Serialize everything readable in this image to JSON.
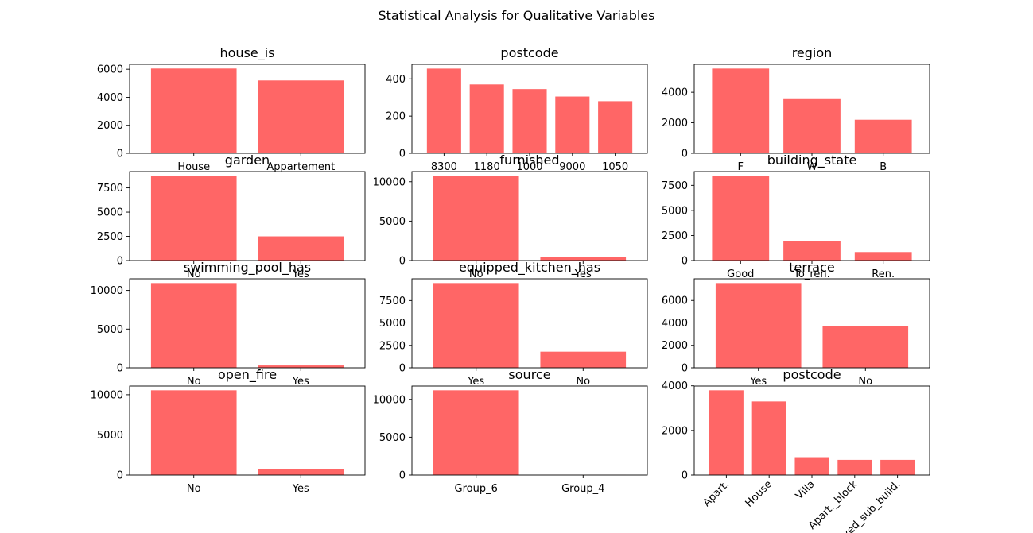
{
  "title": "Statistical Analysis for Qualitative Variables",
  "colors": {
    "bar": "#ff6666",
    "axis": "#000000",
    "background": "#ffffff"
  },
  "chart_data": [
    {
      "type": "bar",
      "title": "house_is",
      "categories": [
        "House",
        "Appartement"
      ],
      "values": [
        6050,
        5200
      ],
      "ylim": [
        0,
        6350
      ],
      "yticks": [
        0,
        2000,
        4000,
        6000
      ],
      "xlabel_rotation": 0
    },
    {
      "type": "bar",
      "title": "postcode",
      "categories": [
        "8300",
        "1180",
        "1000",
        "9000",
        "1050"
      ],
      "values": [
        455,
        370,
        345,
        305,
        280
      ],
      "ylim": [
        0,
        478
      ],
      "yticks": [
        0,
        200,
        400
      ],
      "xlabel_rotation": 0
    },
    {
      "type": "bar",
      "title": "region",
      "categories": [
        "F",
        "W",
        "B"
      ],
      "values": [
        5550,
        3550,
        2200
      ],
      "ylim": [
        0,
        5828
      ],
      "yticks": [
        0,
        2000,
        4000
      ],
      "xlabel_rotation": 0
    },
    {
      "type": "bar",
      "title": "garden",
      "categories": [
        "No",
        "Yes"
      ],
      "values": [
        8750,
        2500
      ],
      "ylim": [
        0,
        9188
      ],
      "yticks": [
        0,
        2500,
        5000,
        7500
      ],
      "xlabel_rotation": 0
    },
    {
      "type": "bar",
      "title": "furnished",
      "categories": [
        "No",
        "Yes"
      ],
      "values": [
        10750,
        500
      ],
      "ylim": [
        0,
        11288
      ],
      "yticks": [
        0,
        5000,
        10000
      ],
      "xlabel_rotation": 0
    },
    {
      "type": "bar",
      "title": "building_state",
      "categories": [
        "Good",
        "To_ren.",
        "Ren."
      ],
      "values": [
        8450,
        1950,
        850
      ],
      "ylim": [
        0,
        8873
      ],
      "yticks": [
        0,
        2500,
        5000,
        7500
      ],
      "xlabel_rotation": 0
    },
    {
      "type": "bar",
      "title": "swimming_pool_has",
      "categories": [
        "No",
        "Yes"
      ],
      "values": [
        10950,
        300
      ],
      "ylim": [
        0,
        11498
      ],
      "yticks": [
        0,
        5000,
        10000
      ],
      "xlabel_rotation": 0
    },
    {
      "type": "bar",
      "title": "equipped_kitchen_has",
      "categories": [
        "Yes",
        "No"
      ],
      "values": [
        9450,
        1800
      ],
      "ylim": [
        0,
        9923
      ],
      "yticks": [
        0,
        2500,
        5000,
        7500
      ],
      "xlabel_rotation": 0
    },
    {
      "type": "bar",
      "title": "terrace",
      "categories": [
        "Yes",
        "No"
      ],
      "values": [
        7550,
        3700
      ],
      "ylim": [
        0,
        7928
      ],
      "yticks": [
        0,
        2000,
        4000,
        6000
      ],
      "xlabel_rotation": 0
    },
    {
      "type": "bar",
      "title": "open_fire",
      "categories": [
        "No",
        "Yes"
      ],
      "values": [
        10550,
        700
      ],
      "ylim": [
        0,
        11078
      ],
      "yticks": [
        0,
        5000,
        10000
      ],
      "xlabel_rotation": 0
    },
    {
      "type": "bar",
      "title": "source",
      "categories": [
        "Group_6",
        "Group_4"
      ],
      "values": [
        11200,
        20
      ],
      "ylim": [
        0,
        11760
      ],
      "yticks": [
        0,
        5000,
        10000
      ],
      "xlabel_rotation": 0
    },
    {
      "type": "bar",
      "title": "postcode",
      "categories": [
        "Apart.",
        "House",
        "Villa",
        "Apart._block",
        "Mixed_sub_build."
      ],
      "values": [
        3800,
        3300,
        800,
        680,
        680
      ],
      "ylim": [
        0,
        3990
      ],
      "yticks": [
        0,
        2000,
        4000
      ],
      "xlabel_rotation": -45
    }
  ]
}
